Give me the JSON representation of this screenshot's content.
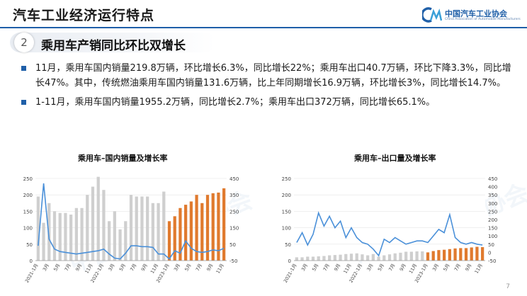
{
  "header": {
    "title": "汽车工业经济运行特点",
    "logo_cn": "中国汽车工业协会",
    "logo_en": "China Association of Automobile Manufacturers"
  },
  "section": {
    "number": "2",
    "title": "乘用车产销同比环比双增长"
  },
  "bullets": [
    "11月，乘用车国内销量219.8万辆，环比增长6.3%，同比增长22%；乘用车出口40.7万辆，环比下降3.3%，同比增长47%。其中，传统燃油乘用车国内销量131.6万辆，比上年同期增长16.9万辆，环比增长3%，同比增长14.7%。",
    "1-11月，乘用车国内销量1955.2万辆，同比增长2.7%；乘用车出口372万辆，同比增长65.1%。"
  ],
  "watermark": "中国汽车工业协会",
  "page_number": "7",
  "colors": {
    "brand": "#1f5fa8",
    "bar_2021_2022": "#cfcfcf",
    "bar_2023": "#e07a2e",
    "line": "#4a90d9"
  },
  "chart_data": [
    {
      "type": "bar",
      "title": "乘用车–国内销量及增长率",
      "categories": [
        "2021-1月",
        "2月",
        "3月",
        "4月",
        "5月",
        "6月",
        "7月",
        "8月",
        "9月",
        "10月",
        "11月",
        "12月",
        "2022-1月",
        "2月",
        "3月",
        "4月",
        "5月",
        "6月",
        "7月",
        "8月",
        "9月",
        "10月",
        "11月",
        "12月",
        "2023-1月",
        "2月",
        "3月",
        "4月",
        "5月",
        "6月",
        "7月",
        "8月",
        "9月",
        "10月",
        "11月"
      ],
      "x_tick_labels": [
        "2021-1月",
        "3月",
        "5月",
        "7月",
        "9月",
        "11月",
        "2022-1月",
        "3月",
        "5月",
        "7月",
        "9月",
        "11月",
        "2023-1月",
        "3月",
        "5月",
        "7月",
        "9月",
        "11月"
      ],
      "series": [
        {
          "kind": "bar",
          "axis": "left",
          "values": [
            195,
            115,
            175,
            150,
            145,
            145,
            140,
            160,
            160,
            200,
            225,
            255,
            215,
            120,
            150,
            95,
            120,
            200,
            195,
            195,
            195,
            175,
            175,
            210,
            120,
            135,
            160,
            170,
            180,
            200,
            175,
            200,
            205,
            207,
            220
          ]
        },
        {
          "kind": "line",
          "axis": "right",
          "values": [
            40,
            420,
            80,
            20,
            5,
            0,
            -5,
            -10,
            -5,
            0,
            5,
            10,
            20,
            -10,
            -35,
            -40,
            -5,
            40,
            40,
            35,
            35,
            30,
            -10,
            -10,
            -40,
            10,
            -5,
            70,
            25,
            5,
            0,
            5,
            15,
            10,
            25
          ]
        }
      ],
      "ylim_left": [
        0,
        250
      ],
      "yticks_left": [
        0,
        50,
        100,
        150,
        200,
        250
      ],
      "ylim_right": [
        -50,
        450
      ],
      "yticks_right": [
        -50,
        50,
        150,
        250,
        350,
        450
      ]
    },
    {
      "type": "bar",
      "title": "乘用车–出口量及增长率",
      "categories": [
        "2021-1月",
        "2月",
        "3月",
        "4月",
        "5月",
        "6月",
        "7月",
        "8月",
        "9月",
        "10月",
        "11月",
        "12月",
        "2022-1月",
        "2月",
        "3月",
        "4月",
        "5月",
        "6月",
        "7月",
        "8月",
        "9月",
        "10月",
        "11月",
        "12月",
        "2023-1月",
        "2月",
        "3月",
        "4月",
        "5月",
        "6月",
        "7月",
        "8月",
        "9月",
        "10月",
        "11月"
      ],
      "x_tick_labels": [
        "2021-1月",
        "3月",
        "5月",
        "7月",
        "9月",
        "11月",
        "2022-1月",
        "3月",
        "5月",
        "7月",
        "9月",
        "11月",
        "2023-1月",
        "3月",
        "5月",
        "7月",
        "9月",
        "11月"
      ],
      "series": [
        {
          "kind": "bar",
          "axis": "left",
          "values": [
            10,
            10,
            12,
            12,
            13,
            14,
            16,
            17,
            18,
            20,
            21,
            22,
            19,
            16,
            20,
            12,
            16,
            19,
            22,
            24,
            27,
            27,
            28,
            28,
            25,
            29,
            32,
            33,
            35,
            37,
            38,
            38,
            40,
            42,
            41
          ]
        },
        {
          "kind": "line",
          "axis": "right",
          "values": [
            60,
            120,
            45,
            110,
            240,
            160,
            220,
            150,
            190,
            90,
            150,
            90,
            60,
            50,
            20,
            -20,
            80,
            60,
            90,
            70,
            50,
            60,
            70,
            70,
            60,
            100,
            140,
            120,
            230,
            90,
            60,
            50,
            60,
            50,
            45
          ]
        }
      ],
      "ylim_left": [
        0,
        250
      ],
      "yticks_left": [
        0,
        50,
        100,
        150,
        200,
        250
      ],
      "ylim_right": [
        -50,
        450
      ],
      "yticks_right": [
        -50,
        0,
        50,
        100,
        150,
        200,
        250,
        300,
        350,
        400,
        450
      ]
    }
  ]
}
